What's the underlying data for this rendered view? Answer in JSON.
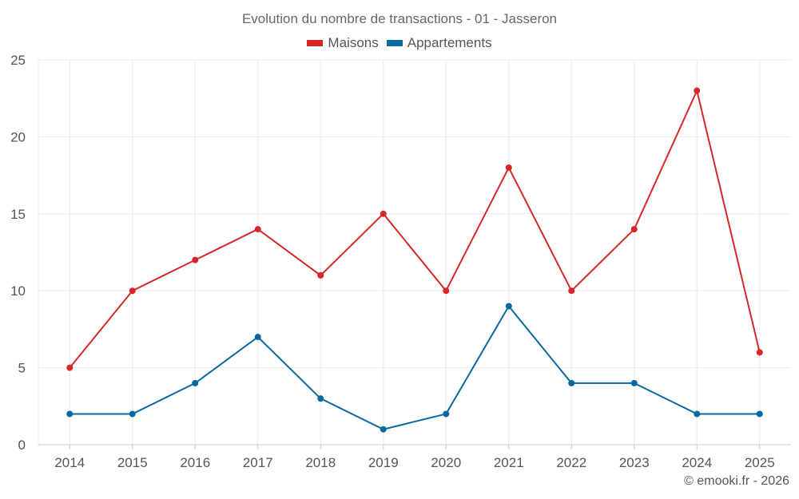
{
  "chart_data": {
    "type": "line",
    "title": "Evolution du nombre de transactions - 01 - Jasseron",
    "categories": [
      "2014",
      "2015",
      "2016",
      "2017",
      "2018",
      "2019",
      "2020",
      "2021",
      "2022",
      "2023",
      "2024",
      "2025"
    ],
    "series": [
      {
        "name": "Maisons",
        "color": "#d62728",
        "values": [
          5,
          10,
          12,
          14,
          11,
          15,
          10,
          18,
          10,
          14,
          23,
          6
        ]
      },
      {
        "name": "Appartements",
        "color": "#0868a0",
        "values": [
          2,
          2,
          4,
          7,
          3,
          1,
          2,
          9,
          4,
          4,
          2,
          2
        ]
      }
    ],
    "ylim": [
      0,
      25
    ],
    "yticks": [
      "0",
      "5",
      "10",
      "15",
      "20",
      "25"
    ],
    "xlabel": "",
    "ylabel": "",
    "grid": true,
    "legend_position": "top-center"
  },
  "credit": "© emooki.fr - 2026"
}
